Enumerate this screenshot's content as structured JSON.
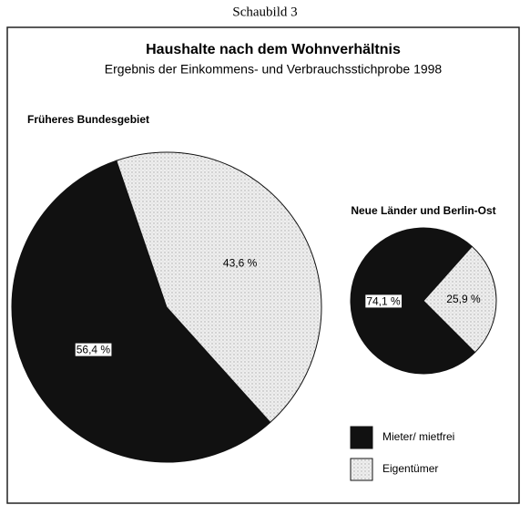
{
  "header": "Schaubild 3",
  "title": "Haushalte nach dem Wohnverhältnis",
  "subtitle": "Ergebnis der Einkommens- und Verbrauchsstichprobe 1998",
  "chart_data": [
    {
      "type": "pie",
      "title": "Früheres Bundesgebiet",
      "categories": [
        "Mieter/ mietfrei",
        "Eigentümer"
      ],
      "values": [
        56.4,
        43.6
      ],
      "value_labels": [
        "56,4 %",
        "43,6 %"
      ],
      "colors": [
        "#111111",
        "#e4e4e4"
      ]
    },
    {
      "type": "pie",
      "title": "Neue Länder und Berlin-Ost",
      "categories": [
        "Mieter/ mietfrei",
        "Eigentümer"
      ],
      "values": [
        74.1,
        25.9
      ],
      "value_labels": [
        "74,1 %",
        "25,9 %"
      ],
      "colors": [
        "#111111",
        "#e4e4e4"
      ]
    }
  ]
}
